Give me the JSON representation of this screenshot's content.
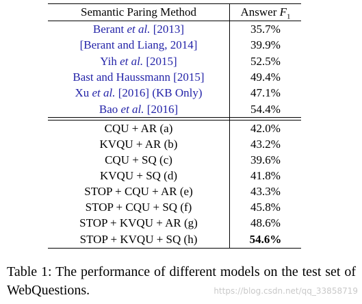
{
  "table": {
    "header": {
      "method": "Semantic Paring Method",
      "answer": [
        "Answer",
        "F",
        "1"
      ]
    },
    "sections": [
      {
        "color": "#2323a8",
        "rows": [
          {
            "method": [
              "Berant",
              "et al.",
              "[2013]"
            ],
            "answer": "35.7%"
          },
          {
            "method": [
              "[Berant and Liang, 2014]"
            ],
            "answer": "39.9%"
          },
          {
            "method": [
              "Yih",
              "et al.",
              "[2015]"
            ],
            "answer": "52.5%"
          },
          {
            "method": [
              "Bast and Haussmann [2015]"
            ],
            "answer": "49.4%"
          },
          {
            "method": [
              "Xu",
              "et al.",
              "[2016] (KB Only)"
            ],
            "answer": "47.1%"
          },
          {
            "method": [
              "Bao",
              "et al.",
              "[2016]"
            ],
            "answer": "54.4%"
          }
        ]
      },
      {
        "color": "#000000",
        "rows": [
          {
            "method": [
              "CQU + AR (a)"
            ],
            "answer": "42.0%"
          },
          {
            "method": [
              "KVQU + AR (b)"
            ],
            "answer": "43.2%"
          },
          {
            "method": [
              "CQU + SQ (c)"
            ],
            "answer": "39.6%"
          },
          {
            "method": [
              "KVQU + SQ (d)"
            ],
            "answer": "41.8%"
          },
          {
            "method": [
              "STOP + CQU + AR (e)"
            ],
            "answer": "43.3%"
          },
          {
            "method": [
              "STOP + CQU + SQ (f)"
            ],
            "answer": "45.8%"
          },
          {
            "method": [
              "STOP + KVQU + AR (g)"
            ],
            "answer": "48.6%"
          },
          {
            "method": [
              "STOP + KVQU + SQ (h)"
            ],
            "answer": "54.6%",
            "bold": true
          }
        ]
      }
    ]
  },
  "caption": [
    "Table 1:",
    "The performance of different models on the test set of WebQuestions."
  ],
  "watermark": "https://blog.csdn.net/qq_33858719"
}
